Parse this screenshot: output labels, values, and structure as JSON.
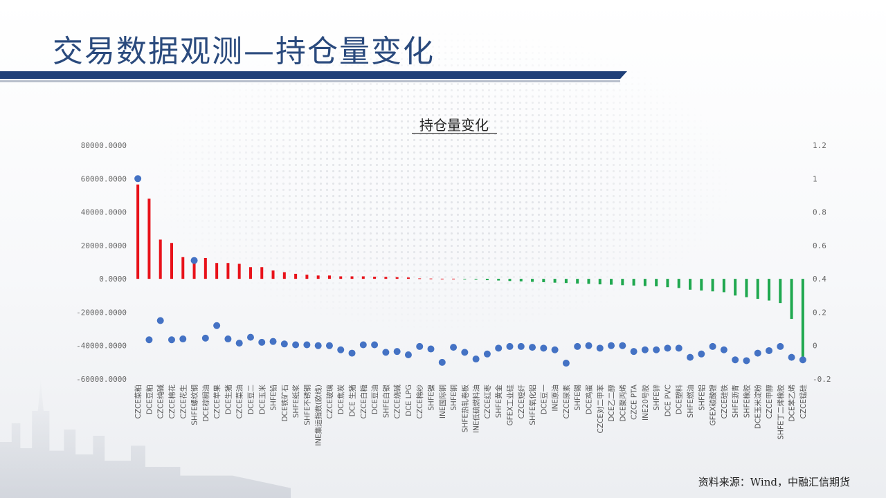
{
  "header": {
    "title": "交易数据观测—持仓量变化"
  },
  "footer": {
    "source": "资料来源：Wind，中融汇信期货"
  },
  "colors": {
    "positive": "#e8121a",
    "negative": "#1fa84f",
    "dot": "#4472c4",
    "title": "#2a4a7d"
  },
  "chart_data": {
    "type": "bar",
    "title": "持仓量变化",
    "xlabel": "",
    "ylabel": "",
    "ylim": [
      -60000,
      80000
    ],
    "y_ticks": [
      "80000.0000",
      "60000.0000",
      "40000.0000",
      "20000.0000",
      "0.0000",
      "-20000.0000",
      "-40000.0000",
      "-60000.0000"
    ],
    "y2lim": [
      -0.2,
      1.2
    ],
    "y2_ticks": [
      "1.2",
      "1",
      "0.8",
      "0.6",
      "0.4",
      "0.2",
      "0",
      "-0.2"
    ],
    "legend": "none",
    "grid": false,
    "categories": [
      "CZCE菜粕",
      "DCE豆粕",
      "CZCE纯碱",
      "CZCE棉花",
      "CZCE花生",
      "SHFE螺纹钢",
      "DCE棕榈油",
      "CZCE苹果",
      "DCE生猪",
      "CZCE菜油",
      "DCE豆二",
      "DCE玉米",
      "SHFE铅",
      "DCE铁矿石",
      "SHFE纸浆",
      "SHFE不锈钢",
      "INE集运指数(欧线)",
      "CZCE玻璃",
      "DCE焦炭",
      "DCE 生猪",
      "CZCE白糖",
      "DCE豆油",
      "SHFE白银",
      "CZCE烧碱",
      "DCE LPG",
      "CZCE棉纱",
      "SHFE镍",
      "INE国际铜",
      "SHFE铜",
      "SHFE热轧卷板",
      "INE低硫燃料油",
      "CZCE红枣",
      "SHFE黄金",
      "GFEX工业硅",
      "CZCE短纤",
      "SHFE氧化铝",
      "DCE豆一",
      "INE原油",
      "CZCE尿素",
      "SHFE锡",
      "DCE鸡蛋",
      "CZCE对二甲苯",
      "DCE乙二醇",
      "DCE聚丙烯",
      "CZCE PTA",
      "INE20号胶",
      "SHFE锌",
      "DCE PVC",
      "DCE塑料",
      "SHFE燃油",
      "SHFE铝",
      "GFEX碳酸锂",
      "CZCE硅铁",
      "SHFE沥青",
      "SHFE橡胶",
      "DCE玉米淀粉",
      "CZCE甲醇",
      "SHFE丁二烯橡胶",
      "DCE苯乙烯",
      "CZCE锰硅"
    ],
    "series": [
      {
        "axis": "left",
        "kind": "bar",
        "values": [
          56500,
          48000,
          23500,
          21500,
          13000,
          12500,
          12500,
          9500,
          9500,
          9000,
          7000,
          7000,
          5000,
          4000,
          3000,
          2500,
          2000,
          2000,
          1500,
          1500,
          1500,
          1300,
          1200,
          1000,
          800,
          300,
          200,
          100,
          100,
          -300,
          -500,
          -800,
          -1000,
          -1300,
          -1500,
          -1800,
          -2000,
          -2300,
          -2500,
          -2800,
          -3000,
          -3300,
          -3500,
          -3800,
          -4000,
          -4300,
          -4500,
          -5000,
          -5500,
          -6500,
          -7000,
          -7500,
          -8000,
          -10000,
          -11000,
          -12000,
          -13000,
          -14500,
          -24000,
          -47000
        ]
      },
      {
        "axis": "right",
        "kind": "scatter",
        "values": [
          1.0,
          0.035,
          0.15,
          0.035,
          0.04,
          0.51,
          0.045,
          0.12,
          0.04,
          0.015,
          0.05,
          0.02,
          0.025,
          0.01,
          0.005,
          0.005,
          0.0,
          0.0,
          -0.025,
          -0.045,
          0.005,
          0.005,
          -0.04,
          -0.035,
          -0.055,
          -0.005,
          -0.02,
          -0.1,
          -0.01,
          -0.04,
          -0.08,
          -0.05,
          -0.015,
          -0.005,
          -0.005,
          -0.01,
          -0.015,
          -0.025,
          -0.105,
          -0.005,
          0.0,
          -0.015,
          0.0,
          0.0,
          -0.035,
          -0.025,
          -0.025,
          -0.015,
          -0.015,
          -0.07,
          -0.05,
          -0.005,
          -0.025,
          -0.085,
          -0.09,
          -0.045,
          -0.03,
          -0.005,
          -0.07,
          -0.085
        ]
      }
    ]
  }
}
